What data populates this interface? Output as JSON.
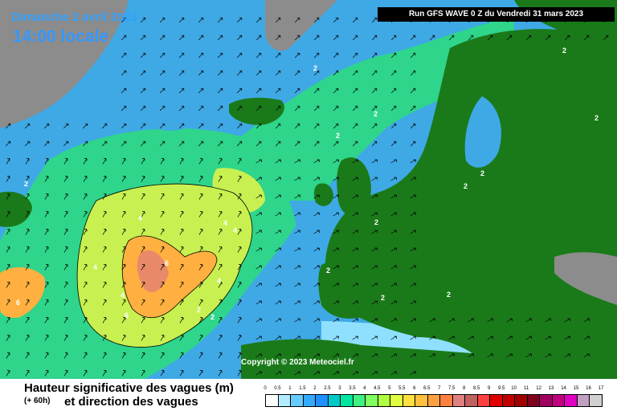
{
  "header": {
    "date": "Dimanche 2 avril 2023",
    "time": "14:00 locale",
    "run": "Run GFS WAVE 0 Z du Vendredi 31 mars 2023"
  },
  "copyright": "Copyright © 2023 Meteociel.fr",
  "legend": {
    "title_line1": "Hauteur significative des vagues (m)",
    "subtitle": "(+ 60h)",
    "title_line2": "et direction des vagues",
    "ticks": [
      "0",
      "0.5",
      "1",
      "1.5",
      "2",
      "2.5",
      "3",
      "3.5",
      "4",
      "4.5",
      "5",
      "5.5",
      "6",
      "6.5",
      "7",
      "7.5",
      "8",
      "8.5",
      "9",
      "9.5",
      "10",
      "11",
      "12",
      "13",
      "14",
      "15",
      "16",
      "17"
    ],
    "colors": [
      "#ffffff",
      "#b3ecff",
      "#66ccff",
      "#33aaff",
      "#1e90ff",
      "#00c8c8",
      "#00e6a0",
      "#40f080",
      "#80ff60",
      "#b0ff40",
      "#e0ff40",
      "#ffe040",
      "#ffc040",
      "#ffa040",
      "#ff8040",
      "#e08080",
      "#c06060",
      "#ff4040",
      "#e00000",
      "#c00000",
      "#a00000",
      "#800020",
      "#a00060",
      "#c00080",
      "#e000c0",
      "#c0a0c0",
      "#d0d0d0"
    ]
  },
  "map": {
    "colors": {
      "land": "#1a7a1a",
      "ice": "#8c8c8c",
      "sea_light": "#8fe0ff",
      "sea_mid": "#3fa9e6",
      "sea_green": "#2ed58a",
      "wave_yellow": "#c8f050",
      "wave_orange": "#ffb040",
      "wave_red": "#e88a6a"
    },
    "contour_labels": [
      "2",
      "2",
      "2",
      "2",
      "2",
      "2",
      "2",
      "2",
      "2",
      "2",
      "2",
      "2",
      "4",
      "4",
      "4",
      "4",
      "4",
      "4",
      "6",
      "6",
      "6",
      "2",
      "2"
    ]
  }
}
